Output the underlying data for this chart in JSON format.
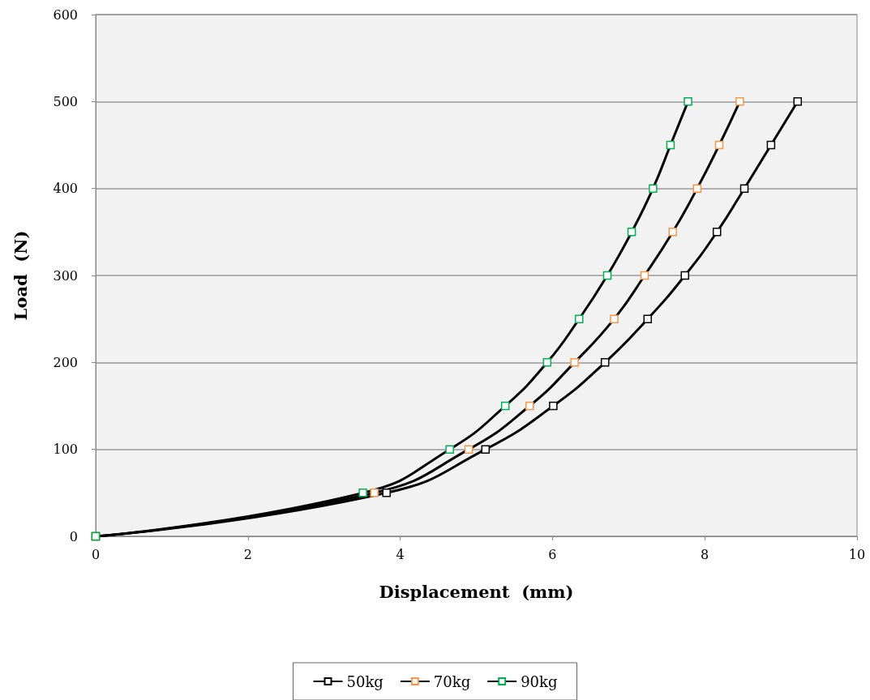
{
  "chart_data": {
    "type": "line",
    "xlabel": "Displacement  (mm)",
    "ylabel": "Load  (N)",
    "xlim": [
      0,
      10
    ],
    "xticks": [
      0,
      2,
      4,
      6,
      8,
      10
    ],
    "ylim": [
      0,
      600
    ],
    "yticks": [
      0,
      100,
      200,
      300,
      400,
      500,
      600
    ],
    "grid": "y",
    "legend": "bottom",
    "marker": "square",
    "line_style": "solid",
    "series": [
      {
        "name": "50kg",
        "color": "#000000",
        "x": [
          0,
          3.82,
          5.12,
          6.01,
          6.69,
          7.25,
          7.74,
          8.16,
          8.52,
          8.87,
          9.22
        ],
        "values": [
          0,
          50,
          100,
          150,
          200,
          250,
          300,
          350,
          400,
          450,
          500
        ]
      },
      {
        "name": "70kg",
        "color": "#f79646",
        "x": [
          0,
          3.66,
          4.9,
          5.7,
          6.29,
          6.81,
          7.21,
          7.58,
          7.9,
          8.19,
          8.46
        ],
        "values": [
          0,
          50,
          100,
          150,
          200,
          250,
          300,
          350,
          400,
          450,
          500
        ]
      },
      {
        "name": "90kg",
        "color": "#00b050",
        "x": [
          0,
          3.51,
          4.65,
          5.38,
          5.93,
          6.35,
          6.72,
          7.04,
          7.32,
          7.55,
          7.78
        ],
        "values": [
          0,
          50,
          100,
          150,
          200,
          250,
          300,
          350,
          400,
          450,
          500
        ]
      }
    ]
  }
}
